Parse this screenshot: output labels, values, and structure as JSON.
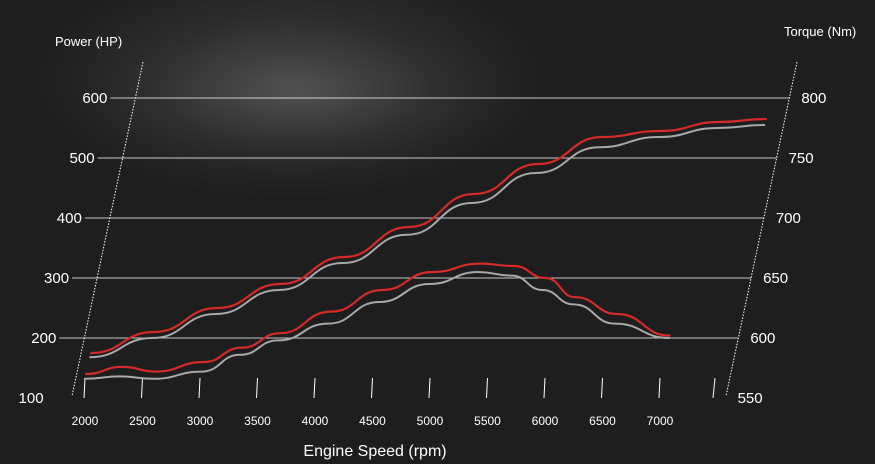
{
  "chart_data": {
    "type": "line",
    "title": "",
    "xlabel": "Engine Speed (rpm)",
    "left_axis_title": "Power (HP)",
    "right_axis_title": "Torque (Nm)",
    "x_ticks": [
      "2000",
      "2500",
      "3000",
      "3500",
      "4000",
      "4500",
      "5000",
      "5500",
      "6000",
      "6500",
      "7000"
    ],
    "left_ticks": [
      "100",
      "200",
      "300",
      "400",
      "500",
      "600"
    ],
    "right_ticks": [
      "550",
      "600",
      "650",
      "700",
      "750",
      "800"
    ],
    "ylim_left": [
      100,
      600
    ],
    "ylim_right": [
      550,
      800
    ],
    "xlim": [
      2000,
      7000
    ],
    "series": [
      {
        "axis": "left",
        "color": "#d42a2a",
        "x": [
          2000,
          2500,
          3000,
          3500,
          4000,
          4500,
          5000,
          5500,
          6000,
          6500,
          7000,
          7400
        ],
        "y": [
          175,
          210,
          250,
          290,
          335,
          385,
          440,
          490,
          535,
          545,
          560,
          565
        ]
      },
      {
        "axis": "left",
        "color": "#a8a8a8",
        "x": [
          2000,
          2500,
          3000,
          3500,
          4000,
          4500,
          5000,
          5500,
          6000,
          6500,
          7000,
          7400
        ],
        "y": [
          168,
          200,
          240,
          280,
          325,
          372,
          425,
          475,
          518,
          535,
          550,
          555
        ]
      },
      {
        "axis": "right",
        "color": "#d42a2a",
        "x": [
          2000,
          2300,
          2600,
          3000,
          3300,
          3600,
          4000,
          4400,
          4800,
          5200,
          5500,
          5800,
          6100,
          6500,
          7000
        ],
        "y": [
          570,
          576,
          572,
          580,
          592,
          604,
          622,
          640,
          655,
          662,
          660,
          650,
          634,
          620,
          602
        ]
      },
      {
        "axis": "right",
        "color": "#a8a8a8",
        "x": [
          2000,
          2300,
          2600,
          3000,
          3300,
          3600,
          4000,
          4400,
          4800,
          5200,
          5500,
          5800,
          6100,
          6500,
          7000
        ],
        "y": [
          566,
          568,
          566,
          572,
          586,
          598,
          612,
          630,
          645,
          655,
          652,
          640,
          628,
          612,
          600
        ]
      }
    ]
  }
}
